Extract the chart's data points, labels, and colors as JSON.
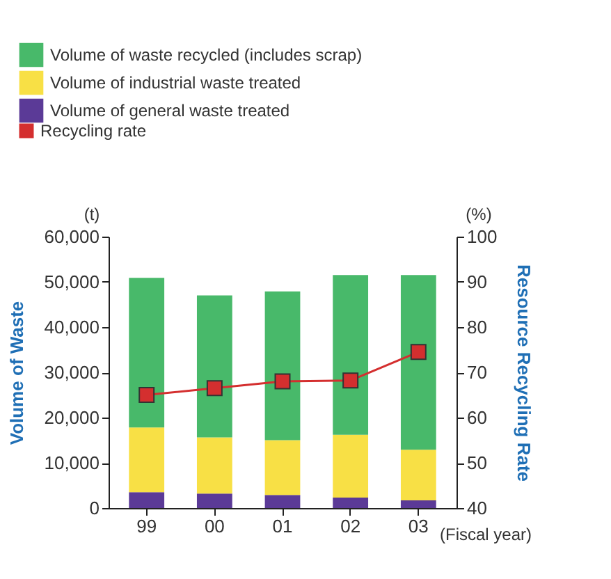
{
  "chart_data": {
    "type": "bar",
    "stacked": true,
    "categories": [
      "99",
      "00",
      "01",
      "02",
      "03"
    ],
    "ylabel": "Volume of Waste",
    "y2label": "Resource Recycling Rate",
    "ylim": [
      0,
      60000
    ],
    "yticks": [
      0,
      {
        "value": 10000,
        "label": "10,000"
      },
      {
        "value": 20000,
        "label": "20,000"
      },
      {
        "value": 30000,
        "label": "30,000"
      },
      {
        "value": 40000,
        "label": "40,000"
      },
      {
        "value": 50000,
        "label": "50,000"
      },
      {
        "value": 60000,
        "label": "60,000"
      }
    ],
    "y2lim": [
      40,
      100
    ],
    "y2ticks": [
      40,
      50,
      60,
      70,
      80,
      90,
      100
    ],
    "series": [
      {
        "name": "Volume of general waste treated",
        "color": "#5b3a97",
        "values": [
          3500,
          3200,
          2900,
          2300,
          1700
        ]
      },
      {
        "name": "Volume of industrial waste treated",
        "color": "#f8e045",
        "values": [
          14300,
          12400,
          12100,
          13900,
          11200
        ]
      },
      {
        "name": "Volume of waste recycled (includes scrap)",
        "color": "#48b96a",
        "values": [
          33100,
          31400,
          32900,
          35300,
          38600
        ]
      },
      {
        "name": "Recycling rate",
        "type": "line",
        "axis": "y2",
        "color": "#d42f2f",
        "marker": "square",
        "values": [
          65.0,
          66.5,
          68.0,
          68.2,
          74.5
        ]
      }
    ],
    "annotations": [
      "(t)",
      "(%)",
      "(Fiscal year)"
    ],
    "legend": "top left",
    "grid": false
  }
}
